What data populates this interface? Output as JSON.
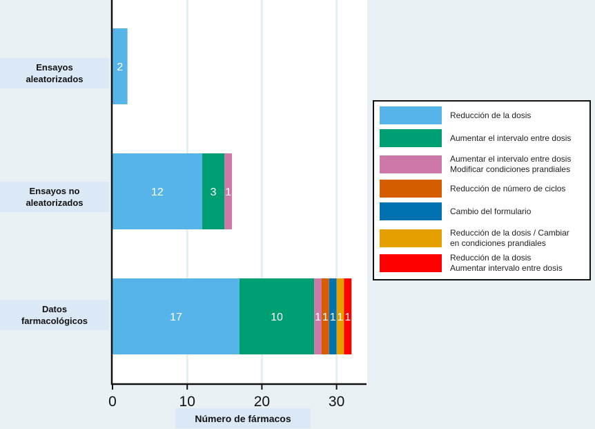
{
  "chart_data": {
    "type": "bar",
    "orientation": "horizontal",
    "stacked": true,
    "title": "",
    "xlabel": "Número de fármacos",
    "ylabel": "",
    "xlim": [
      0,
      34
    ],
    "xticks": [
      0,
      10,
      20,
      30
    ],
    "xtick_labels": [
      "0",
      "10",
      "20",
      "30"
    ],
    "grid": "vertical",
    "legend_position": "right",
    "categories": [
      "Ensayos aleatorizados",
      "Ensayos no aleatorizados",
      "Datos farmacológicos"
    ],
    "category_labels": [
      [
        "Ensayos",
        "aleatorizados"
      ],
      [
        "Ensayos no",
        "aleatorizados"
      ],
      [
        "Datos",
        "farmacológicos"
      ]
    ],
    "series": [
      {
        "name": "Reducción de la dosis",
        "legend_lines": [
          "Reducción de la dosis"
        ],
        "color": "#56b4e9",
        "values": [
          2,
          12,
          17
        ]
      },
      {
        "name": "Aumentar el intervalo entre dosis",
        "legend_lines": [
          "Aumentar el intervalo entre dosis"
        ],
        "color": "#009e73",
        "values": [
          0,
          3,
          10
        ]
      },
      {
        "name": "Aumentar el intervalo entre dosis Modificar condiciones prandiales",
        "legend_lines": [
          "Aumentar el intervalo entre dosis",
          "Modificar condiciones prandiales"
        ],
        "color": "#cc79a7",
        "values": [
          0,
          1,
          1
        ]
      },
      {
        "name": "Reducción de número de ciclos",
        "legend_lines": [
          "Reducción de número de ciclos"
        ],
        "color": "#d55e00",
        "values": [
          0,
          0,
          1
        ]
      },
      {
        "name": "Cambio del formulario",
        "legend_lines": [
          "Cambio del formulario"
        ],
        "color": "#0072b2",
        "values": [
          0,
          0,
          1
        ]
      },
      {
        "name": "Reducción de la dosis / Cambiar en condiciones prandiales",
        "legend_lines": [
          "Reducción de la dosis / Cambiar",
          "en condiciones prandiales"
        ],
        "color": "#e69f00",
        "values": [
          0,
          0,
          1
        ]
      },
      {
        "name": "Reducción de la dosis Aumentar intervalo entre dosis",
        "legend_lines": [
          "Reducción de la dosis",
          "Aumentar intervalo entre dosis"
        ],
        "color": "#ff0000",
        "values": [
          0,
          0,
          1
        ]
      }
    ],
    "data_labels": true
  }
}
